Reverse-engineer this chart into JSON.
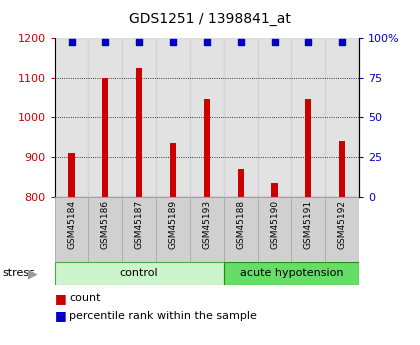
{
  "title": "GDS1251 / 1398841_at",
  "samples": [
    "GSM45184",
    "GSM45186",
    "GSM45187",
    "GSM45189",
    "GSM45193",
    "GSM45188",
    "GSM45190",
    "GSM45191",
    "GSM45192"
  ],
  "counts": [
    910,
    1100,
    1125,
    935,
    1045,
    870,
    835,
    1045,
    940
  ],
  "percentiles": [
    99,
    99,
    99,
    99,
    99,
    99,
    99,
    99,
    99
  ],
  "group_labels": [
    "control",
    "acute hypotension"
  ],
  "group_control_color": "#ccf5cc",
  "group_acute_color": "#66dd66",
  "bar_color": "#cc0000",
  "dot_color": "#0000cc",
  "cell_color": "#d0d0d0",
  "ylim_left": [
    800,
    1200
  ],
  "ylim_right": [
    0,
    100
  ],
  "yticks_left": [
    800,
    900,
    1000,
    1100,
    1200
  ],
  "yticks_right": [
    0,
    25,
    50,
    75,
    100
  ],
  "tick_label_color_left": "#cc0000",
  "tick_label_color_right": "#0000cc",
  "stress_label": "stress",
  "legend_count_label": "count",
  "legend_pct_label": "percentile rank within the sample",
  "n_control": 5,
  "n_total": 9
}
